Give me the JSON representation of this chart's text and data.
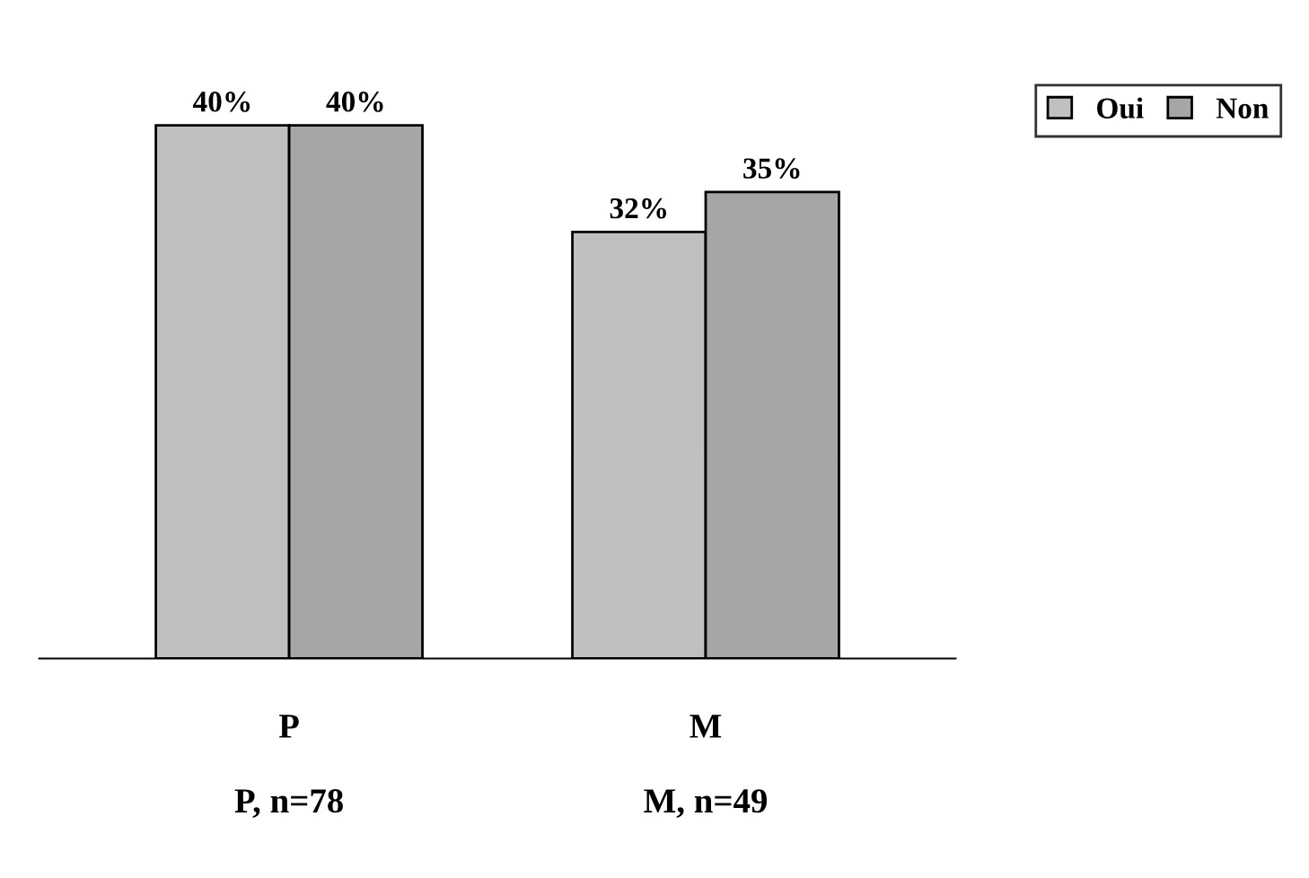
{
  "chart_data": {
    "type": "bar",
    "categories": [
      "P",
      "M"
    ],
    "series": [
      {
        "name": "Oui",
        "color": "#c0c0c0",
        "values": [
          40,
          32
        ],
        "value_labels": [
          "40%",
          "32%"
        ]
      },
      {
        "name": "Non",
        "color": "#a6a6a6",
        "values": [
          40,
          35
        ],
        "value_labels": [
          "40%",
          "35%"
        ]
      }
    ],
    "legend": "top right",
    "grid": false,
    "annotations": [
      "P, n=78",
      "M, n=49"
    ]
  }
}
